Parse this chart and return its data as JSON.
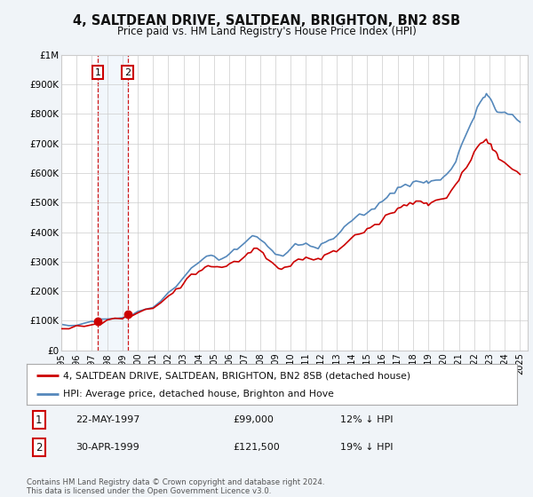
{
  "title": "4, SALTDEAN DRIVE, SALTDEAN, BRIGHTON, BN2 8SB",
  "subtitle": "Price paid vs. HM Land Registry's House Price Index (HPI)",
  "legend_label_red": "4, SALTDEAN DRIVE, SALTDEAN, BRIGHTON, BN2 8SB (detached house)",
  "legend_label_blue": "HPI: Average price, detached house, Brighton and Hove",
  "transaction1_date": "22-MAY-1997",
  "transaction1_price": "£99,000",
  "transaction1_hpi": "12% ↓ HPI",
  "transaction2_date": "30-APR-1999",
  "transaction2_price": "£121,500",
  "transaction2_hpi": "19% ↓ HPI",
  "footnote": "Contains HM Land Registry data © Crown copyright and database right 2024.\nThis data is licensed under the Open Government Licence v3.0.",
  "ylim": [
    0,
    1000000
  ],
  "yticks": [
    0,
    100000,
    200000,
    300000,
    400000,
    500000,
    600000,
    700000,
    800000,
    900000,
    1000000
  ],
  "ytick_labels": [
    "£0",
    "£100K",
    "£200K",
    "£300K",
    "£400K",
    "£500K",
    "£600K",
    "£700K",
    "£800K",
    "£900K",
    "£1M"
  ],
  "xlim_start": 1995.0,
  "xlim_end": 2025.5,
  "xtick_years": [
    1995,
    1996,
    1997,
    1998,
    1999,
    2000,
    2001,
    2002,
    2003,
    2004,
    2005,
    2006,
    2007,
    2008,
    2009,
    2010,
    2011,
    2012,
    2013,
    2014,
    2015,
    2016,
    2017,
    2018,
    2019,
    2020,
    2021,
    2022,
    2023,
    2024,
    2025
  ],
  "transaction1_x": 1997.388,
  "transaction2_x": 1999.329,
  "transaction1_y": 99000,
  "transaction2_y": 121500,
  "bg_color": "#f0f4f8",
  "plot_bg": "#ffffff",
  "grid_color": "#cccccc",
  "red_color": "#cc0000",
  "blue_color": "#5588bb"
}
